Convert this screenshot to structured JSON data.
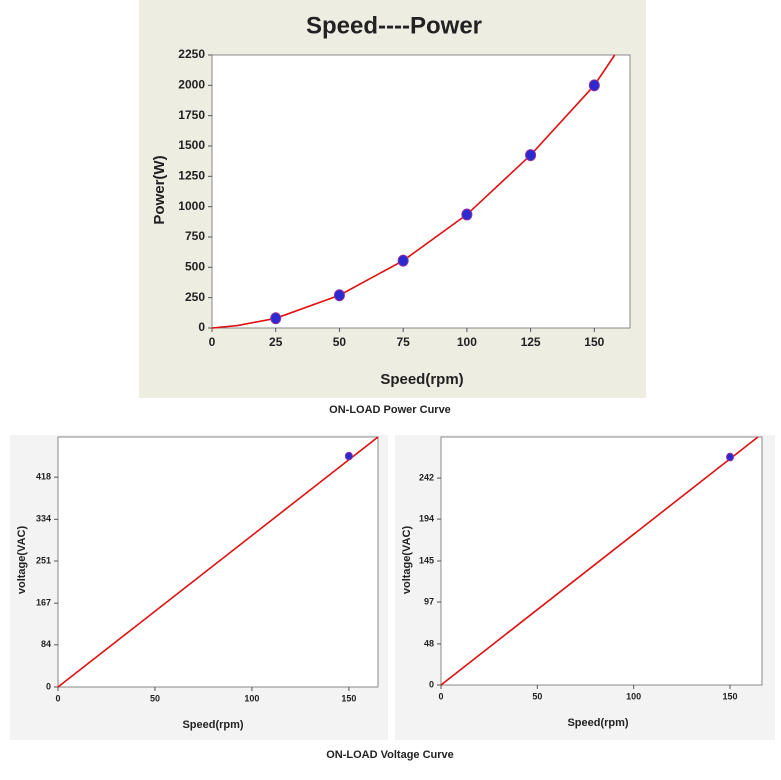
{
  "chart_data": [
    {
      "type": "scatter",
      "title": "Speed----Power",
      "xlabel": "Speed(rpm)",
      "ylabel": "Power(W)",
      "xlim": [
        0,
        164
      ],
      "ylim": [
        0,
        2250
      ],
      "xticks": [
        0,
        25,
        50,
        75,
        100,
        125,
        150
      ],
      "yticks": [
        0,
        250,
        500,
        750,
        1000,
        1250,
        1500,
        1750,
        2000,
        2250
      ],
      "series": [
        {
          "color": "#e01010",
          "line": true,
          "x": [
            0,
            10,
            25,
            50,
            75,
            100,
            125,
            150,
            158
          ],
          "values": [
            0,
            20,
            80,
            270,
            555,
            935,
            1425,
            2000,
            2250
          ]
        },
        {
          "color": "#2a2ad0",
          "marker": true,
          "x": [
            25,
            50,
            75,
            100,
            125,
            150
          ],
          "values": [
            80,
            270,
            555,
            935,
            1425,
            2000
          ]
        }
      ]
    },
    {
      "type": "scatter",
      "xlabel": "Speed(rpm)",
      "ylabel": "voltage(VAC)",
      "xlim": [
        0,
        165
      ],
      "ylim": [
        0,
        498
      ],
      "xticks": [
        0,
        50,
        100,
        150
      ],
      "yticks": [
        0,
        84,
        167,
        251,
        334,
        418
      ],
      "series": [
        {
          "color": "#e01010",
          "line": true,
          "x": [
            0,
            165
          ],
          "values": [
            0,
            498
          ]
        },
        {
          "color": "#2a2ad0",
          "marker": true,
          "x": [
            150
          ],
          "values": [
            460
          ]
        }
      ]
    },
    {
      "type": "scatter",
      "xlabel": "Speed(rpm)",
      "ylabel": "voltage(VAC)",
      "xlim": [
        0,
        166.6
      ],
      "ylim": [
        0,
        290
      ],
      "xticks": [
        0,
        50,
        100,
        150
      ],
      "yticks": [
        0,
        48,
        97,
        145,
        194,
        242
      ],
      "series": [
        {
          "color": "#e01010",
          "line": true,
          "x": [
            0,
            164.5
          ],
          "values": [
            0,
            290
          ]
        },
        {
          "color": "#2a2ad0",
          "marker": true,
          "x": [
            150
          ],
          "values": [
            266.6
          ]
        }
      ]
    }
  ],
  "captions": {
    "power": "ON-LOAD Power Curve",
    "voltage": "ON-LOAD Voltage Curve"
  }
}
